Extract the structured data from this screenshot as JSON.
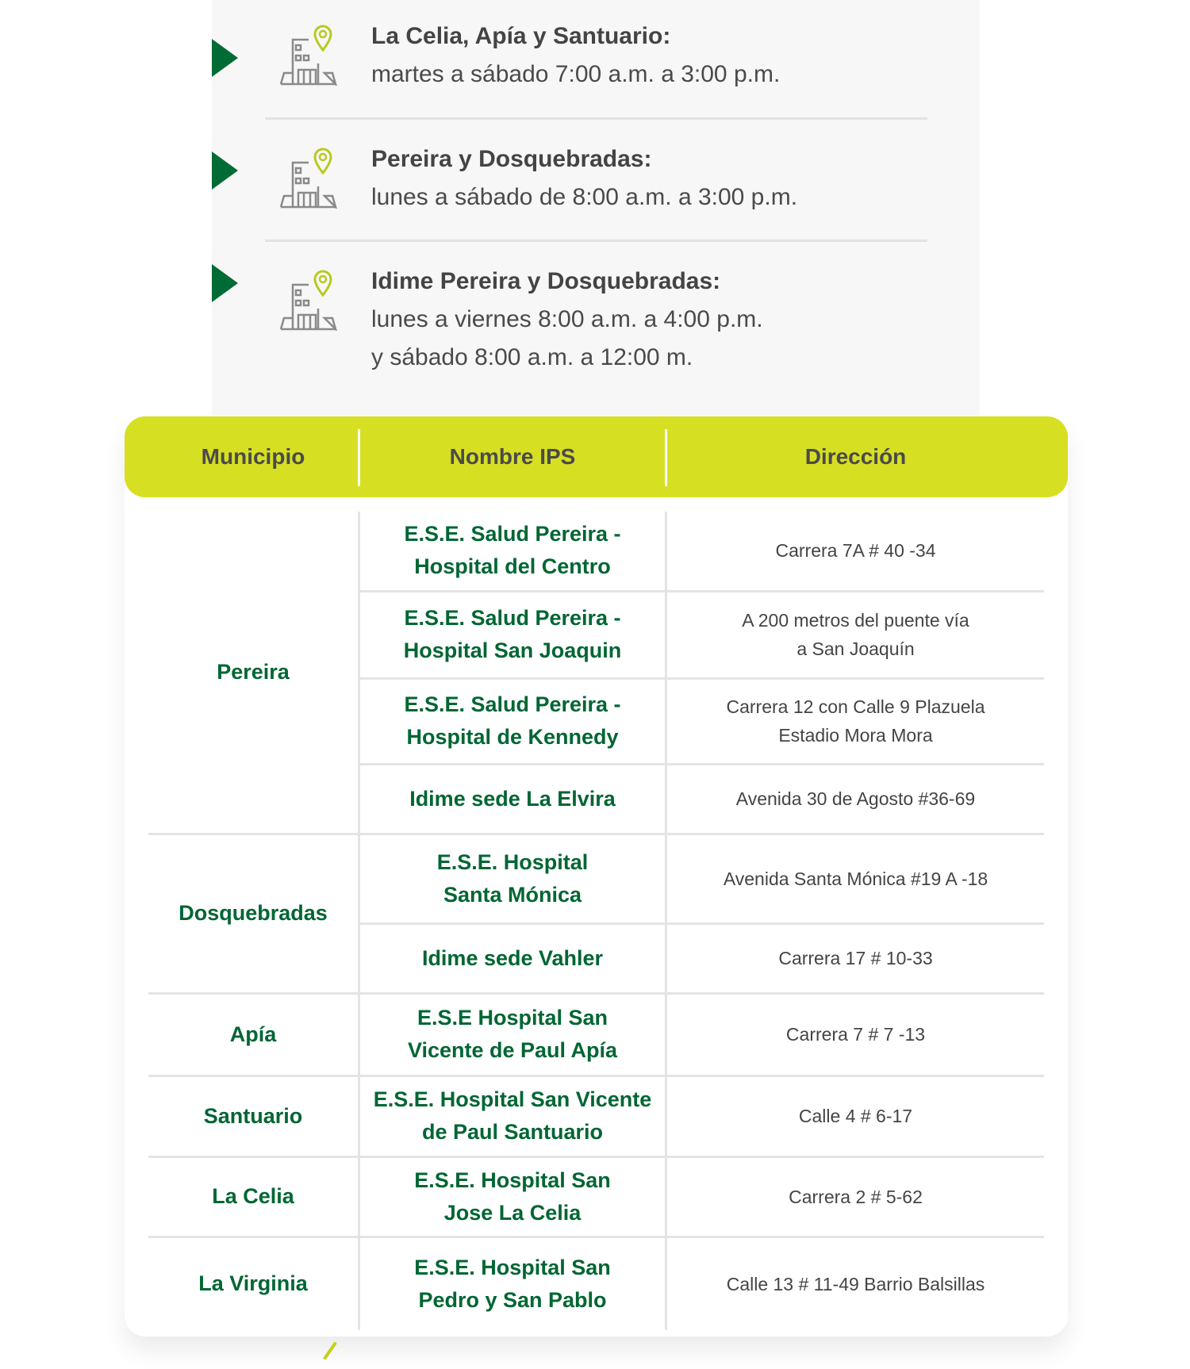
{
  "schedules": [
    {
      "title": "La Celia, Apía y Santuario:",
      "lines": [
        "martes a sábado 7:00 a.m. a 3:00 p.m."
      ],
      "icon": "building-location-icon"
    },
    {
      "title": "Pereira y Dosquebradas:",
      "lines": [
        "lunes a sábado de 8:00 a.m. a 3:00 p.m."
      ],
      "icon": "building-location-icon"
    },
    {
      "title": "Idime Pereira y Dosquebradas:",
      "lines": [
        "lunes a viernes 8:00 a.m. a 4:00 p.m.",
        "y sábado 8:00 a.m. a 12:00 m."
      ],
      "icon": "building-location-icon"
    }
  ],
  "colors": {
    "accent": "#d7df23",
    "green": "#006633",
    "arrow": "#006b34",
    "panel": "#f7f7f7"
  },
  "table": {
    "headers": [
      "Municipio",
      "Nombre IPS",
      "Dirección"
    ],
    "groups": [
      {
        "municipio": "Pereira",
        "rows": [
          {
            "ips": [
              "E.S.E. Salud Pereira -",
              "Hospital del Centro"
            ],
            "dir": [
              "Carrera 7A # 40 -34"
            ]
          },
          {
            "ips": [
              "E.S.E. Salud Pereira -",
              "Hospital San Joaquin"
            ],
            "dir": [
              "A 200 metros del puente vía",
              "a San Joaquín"
            ]
          },
          {
            "ips": [
              "E.S.E. Salud Pereira -",
              "Hospital de Kennedy"
            ],
            "dir": [
              "Carrera 12 con Calle 9 Plazuela",
              "Estadio Mora Mora"
            ]
          },
          {
            "ips": [
              "Idime sede La Elvira"
            ],
            "dir": [
              "Avenida 30 de Agosto #36-69"
            ]
          }
        ]
      },
      {
        "municipio": "Dosquebradas",
        "rows": [
          {
            "ips": [
              "E.S.E. Hospital",
              "Santa Mónica"
            ],
            "dir": [
              "Avenida Santa Mónica #19 A -18"
            ]
          },
          {
            "ips": [
              "Idime sede Vahler"
            ],
            "dir": [
              "Carrera 17 # 10-33"
            ]
          }
        ]
      },
      {
        "municipio": "Apía",
        "rows": [
          {
            "ips": [
              "E.S.E Hospital San",
              "Vicente de Paul Apía"
            ],
            "dir": [
              "Carrera 7 # 7 -13"
            ]
          }
        ]
      },
      {
        "municipio": "Santuario",
        "rows": [
          {
            "ips": [
              "E.S.E. Hospital San Vicente",
              "de Paul Santuario"
            ],
            "dir": [
              "Calle 4 # 6-17"
            ]
          }
        ]
      },
      {
        "municipio": "La Celia",
        "rows": [
          {
            "ips": [
              "E.S.E. Hospital San",
              "Jose La Celia"
            ],
            "dir": [
              "Carrera 2 # 5-62"
            ]
          }
        ]
      },
      {
        "municipio": "La Virginia",
        "rows": [
          {
            "ips": [
              "E.S.E. Hospital San",
              "Pedro y San Pablo"
            ],
            "dir": [
              "Calle 13 # 11-49 Barrio Balsillas"
            ]
          }
        ]
      }
    ]
  }
}
